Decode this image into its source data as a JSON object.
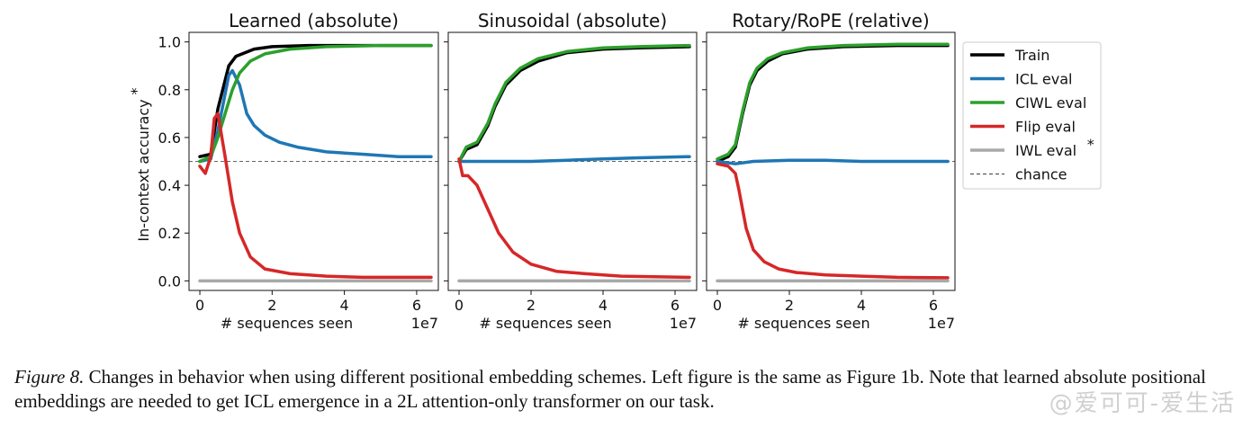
{
  "chart_data": [
    {
      "type": "line",
      "title": "Learned (absolute)",
      "xlabel": "# sequences seen",
      "x_offset_label": "1e7",
      "ylabel": "In-context accuracy",
      "ylabel_superscript": "*",
      "xlim": [
        -0.3,
        6.6
      ],
      "ylim": [
        -0.04,
        1.04
      ],
      "xticks": [
        "0",
        "2",
        "4",
        "6"
      ],
      "yticks": [
        "0.0",
        "0.2",
        "0.4",
        "0.6",
        "0.8",
        "1.0"
      ],
      "series": [
        {
          "name": "Train",
          "color": "#000000",
          "x": [
            0,
            0.3,
            0.5,
            0.8,
            1.0,
            1.5,
            2.0,
            3.0,
            4.0,
            5.0,
            6.4
          ],
          "y": [
            0.52,
            0.53,
            0.72,
            0.9,
            0.94,
            0.97,
            0.98,
            0.985,
            0.985,
            0.985,
            0.985
          ]
        },
        {
          "name": "ICL eval",
          "color": "#1f77b4",
          "x": [
            0,
            0.3,
            0.5,
            0.8,
            0.9,
            1.1,
            1.3,
            1.5,
            1.8,
            2.2,
            2.7,
            3.5,
            4.5,
            5.5,
            6.4
          ],
          "y": [
            0.5,
            0.51,
            0.63,
            0.86,
            0.88,
            0.82,
            0.7,
            0.65,
            0.61,
            0.58,
            0.56,
            0.54,
            0.53,
            0.52,
            0.52
          ]
        },
        {
          "name": "CIWL eval",
          "color": "#2ca02c",
          "x": [
            0,
            0.3,
            0.5,
            0.7,
            0.9,
            1.1,
            1.4,
            1.8,
            2.5,
            3.5,
            5.0,
            6.4
          ],
          "y": [
            0.5,
            0.52,
            0.6,
            0.7,
            0.8,
            0.87,
            0.92,
            0.95,
            0.97,
            0.98,
            0.985,
            0.985
          ]
        },
        {
          "name": "Flip eval",
          "color": "#d62728",
          "x": [
            0,
            0.15,
            0.3,
            0.4,
            0.5,
            0.7,
            0.9,
            1.1,
            1.4,
            1.8,
            2.5,
            3.5,
            4.5,
            6.4
          ],
          "y": [
            0.48,
            0.45,
            0.52,
            0.68,
            0.7,
            0.52,
            0.33,
            0.2,
            0.1,
            0.05,
            0.03,
            0.02,
            0.015,
            0.015
          ]
        },
        {
          "name": "IWL eval",
          "color": "#a9a9a9",
          "x": [
            0,
            6.4
          ],
          "y": [
            0.0,
            0.0
          ]
        }
      ]
    },
    {
      "type": "line",
      "title": "Sinusoidal (absolute)",
      "xlabel": "# sequences seen",
      "x_offset_label": "1e7",
      "xlim": [
        -0.3,
        6.6
      ],
      "ylim": [
        -0.04,
        1.04
      ],
      "xticks": [
        "0",
        "2",
        "4",
        "6"
      ],
      "series": [
        {
          "name": "Train",
          "color": "#000000",
          "x": [
            0,
            0.2,
            0.5,
            0.8,
            1.0,
            1.3,
            1.7,
            2.2,
            3.0,
            4.0,
            5.0,
            6.4
          ],
          "y": [
            0.5,
            0.55,
            0.57,
            0.65,
            0.73,
            0.82,
            0.88,
            0.92,
            0.955,
            0.97,
            0.975,
            0.98
          ]
        },
        {
          "name": "ICL eval",
          "color": "#1f77b4",
          "x": [
            0,
            0.5,
            1.0,
            2.0,
            3.0,
            4.0,
            5.0,
            6.4
          ],
          "y": [
            0.5,
            0.5,
            0.5,
            0.5,
            0.505,
            0.51,
            0.515,
            0.52
          ]
        },
        {
          "name": "CIWL eval",
          "color": "#2ca02c",
          "x": [
            0,
            0.2,
            0.5,
            0.8,
            1.0,
            1.3,
            1.7,
            2.2,
            3.0,
            4.0,
            5.0,
            6.4
          ],
          "y": [
            0.5,
            0.56,
            0.58,
            0.66,
            0.74,
            0.83,
            0.89,
            0.93,
            0.96,
            0.975,
            0.98,
            0.985
          ]
        },
        {
          "name": "Flip eval",
          "color": "#d62728",
          "x": [
            0,
            0.1,
            0.25,
            0.5,
            0.8,
            1.1,
            1.5,
            2.0,
            2.7,
            3.5,
            4.5,
            6.4
          ],
          "y": [
            0.51,
            0.44,
            0.44,
            0.4,
            0.3,
            0.2,
            0.12,
            0.07,
            0.04,
            0.03,
            0.02,
            0.015
          ]
        },
        {
          "name": "IWL eval",
          "color": "#a9a9a9",
          "x": [
            0,
            6.4
          ],
          "y": [
            0.0,
            0.0
          ]
        }
      ]
    },
    {
      "type": "line",
      "title": "Rotary/RoPE (relative)",
      "xlabel": "# sequences seen",
      "x_offset_label": "1e7",
      "xlim": [
        -0.3,
        6.6
      ],
      "ylim": [
        -0.04,
        1.04
      ],
      "xticks": [
        "0",
        "2",
        "4",
        "6"
      ],
      "series": [
        {
          "name": "Train",
          "color": "#000000",
          "x": [
            0,
            0.3,
            0.5,
            0.7,
            0.9,
            1.1,
            1.4,
            1.8,
            2.5,
            3.5,
            5.0,
            6.4
          ],
          "y": [
            0.5,
            0.52,
            0.56,
            0.7,
            0.82,
            0.88,
            0.92,
            0.95,
            0.97,
            0.98,
            0.985,
            0.985
          ]
        },
        {
          "name": "ICL eval",
          "color": "#1f77b4",
          "x": [
            0,
            0.5,
            1.0,
            2.0,
            3.0,
            4.0,
            5.0,
            6.4
          ],
          "y": [
            0.5,
            0.49,
            0.5,
            0.505,
            0.505,
            0.5,
            0.5,
            0.5
          ]
        },
        {
          "name": "CIWL eval",
          "color": "#2ca02c",
          "x": [
            0,
            0.3,
            0.5,
            0.7,
            0.9,
            1.1,
            1.4,
            1.8,
            2.5,
            3.5,
            5.0,
            6.4
          ],
          "y": [
            0.51,
            0.53,
            0.57,
            0.71,
            0.83,
            0.89,
            0.93,
            0.955,
            0.975,
            0.985,
            0.99,
            0.99
          ]
        },
        {
          "name": "Flip eval",
          "color": "#d62728",
          "x": [
            0,
            0.3,
            0.5,
            0.6,
            0.8,
            1.0,
            1.3,
            1.7,
            2.2,
            3.0,
            4.0,
            5.0,
            6.4
          ],
          "y": [
            0.49,
            0.48,
            0.45,
            0.38,
            0.22,
            0.13,
            0.08,
            0.05,
            0.035,
            0.025,
            0.02,
            0.015,
            0.013
          ]
        },
        {
          "name": "IWL eval",
          "color": "#a9a9a9",
          "x": [
            0,
            6.4
          ],
          "y": [
            0.0,
            0.0
          ]
        }
      ]
    }
  ],
  "chance_level": 0.5,
  "legend": {
    "placement": "right",
    "items": [
      {
        "label": "Train",
        "color": "#000000",
        "style": "solid"
      },
      {
        "label": "ICL eval",
        "color": "#1f77b4",
        "style": "solid"
      },
      {
        "label": "CIWL eval",
        "color": "#2ca02c",
        "style": "solid"
      },
      {
        "label": "Flip eval",
        "color": "#d62728",
        "style": "solid"
      },
      {
        "label": "IWL eval",
        "superscript": "*",
        "color": "#a9a9a9",
        "style": "solid"
      },
      {
        "label": "chance",
        "color": "#555555",
        "style": "dashed"
      }
    ]
  },
  "caption": {
    "label": "Figure 8.",
    "text": " Changes in behavior when using different positional embedding schemes. Left figure is the same as Figure 1b. Note that learned absolute positional embeddings are needed to get ICL emergence in a 2L attention-only transformer on our task."
  },
  "watermark": "@爱可可-爱生活"
}
